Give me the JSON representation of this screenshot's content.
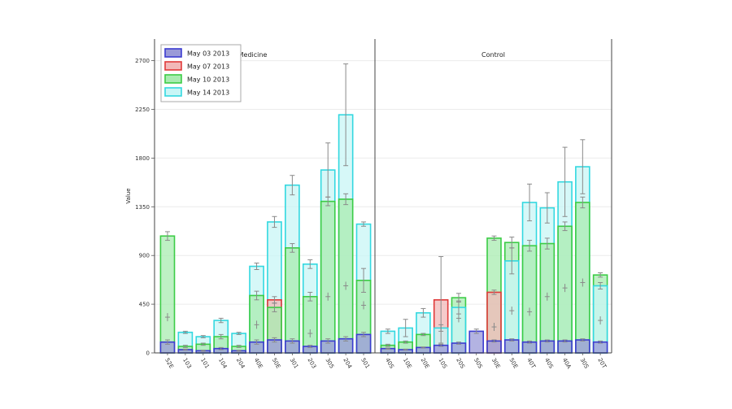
{
  "chart_data": {
    "type": "bar",
    "stacking": "overlay",
    "ylabel": "Value",
    "ylim": [
      0,
      2900
    ],
    "yticks": [
      0,
      450,
      900,
      1350,
      1800,
      2250,
      2700
    ],
    "grid": true,
    "legend_position": "top-left",
    "colors": {
      "May 03 2013": {
        "fill": "#9a9ad8",
        "stroke": "#3c3cd0"
      },
      "May 07 2013": {
        "fill": "#f2b8b8",
        "stroke": "#e03a3a"
      },
      "May 10 2013": {
        "fill": "#a8ecb0",
        "stroke": "#3ccc46"
      },
      "May 14 2013": {
        "fill": "#c8f6f6",
        "stroke": "#33d8e0"
      }
    },
    "legend": [
      "May 03 2013",
      "May 07 2013",
      "May 10 2013",
      "May 14 2013"
    ],
    "panels": [
      {
        "title": "Medicine",
        "categories": [
          "52E",
          "103",
          "101",
          "104",
          "204",
          "40E",
          "50E",
          "301",
          "203",
          "305",
          "204",
          "501"
        ],
        "series": [
          {
            "name": "May 03 2013",
            "values": [
              100,
              30,
              20,
              40,
              20,
              100,
              120,
              110,
              60,
              110,
              130,
              170
            ],
            "errors": [
              20,
              5,
              5,
              10,
              5,
              20,
              20,
              20,
              10,
              20,
              20,
              20
            ]
          },
          {
            "name": "May 07 2013",
            "values": [
              0,
              0,
              0,
              0,
              0,
              0,
              490,
              0,
              0,
              0,
              0,
              0
            ],
            "errors": [
              0,
              0,
              0,
              0,
              0,
              0,
              30,
              0,
              0,
              0,
              0,
              0
            ]
          },
          {
            "name": "May 10 2013",
            "values": [
              1080,
              60,
              80,
              150,
              60,
              530,
              420,
              970,
              520,
              1400,
              1420,
              670
            ],
            "errors": [
              40,
              10,
              10,
              20,
              10,
              40,
              40,
              40,
              40,
              40,
              50,
              110
            ]
          },
          {
            "name": "May 14 2013",
            "values": [
              0,
              190,
              150,
              300,
              180,
              800,
              1210,
              1550,
              820,
              1690,
              2200,
              1190
            ],
            "errors": [
              0,
              10,
              10,
              20,
              10,
              30,
              50,
              90,
              40,
              250,
              470,
              20
            ]
          }
        ],
        "inner_points": [
          {
            "values": [
              330,
              0,
              0,
              0,
              0,
              260,
              0,
              0,
              180,
              520,
              620,
              440
            ]
          }
        ]
      },
      {
        "title": "Control",
        "categories": [
          "40S",
          "10E",
          "20E",
          "10S",
          "20S",
          "50S",
          "30E",
          "50E",
          "40T",
          "40S",
          "40A",
          "30S",
          "20T"
        ],
        "series": [
          {
            "name": "May 03 2013",
            "values": [
              40,
              30,
              50,
              70,
              90,
              200,
              110,
              120,
              100,
              110,
              110,
              120,
              100
            ],
            "errors": [
              5,
              5,
              5,
              10,
              10,
              20,
              10,
              10,
              10,
              10,
              10,
              10,
              10
            ]
          },
          {
            "name": "May 07 2013",
            "values": [
              0,
              0,
              0,
              490,
              0,
              0,
              560,
              0,
              0,
              0,
              0,
              0,
              0
            ],
            "errors": [
              0,
              0,
              0,
              400,
              0,
              0,
              20,
              0,
              0,
              0,
              0,
              0,
              0
            ]
          },
          {
            "name": "May 10 2013",
            "values": [
              70,
              100,
              170,
              0,
              510,
              0,
              1060,
              1020,
              990,
              1010,
              1170,
              1390,
              720
            ],
            "errors": [
              10,
              10,
              10,
              0,
              40,
              0,
              20,
              50,
              50,
              50,
              40,
              50,
              20
            ]
          },
          {
            "name": "May 14 2013",
            "values": [
              200,
              230,
              370,
              230,
              420,
              0,
              0,
              850,
              1390,
              1340,
              1580,
              1720,
              620
            ],
            "errors": [
              20,
              80,
              40,
              30,
              60,
              0,
              0,
              120,
              170,
              140,
              320,
              250,
              30
            ]
          }
        ],
        "inner_points": [
          {
            "values": [
              0,
              0,
              0,
              0,
              320,
              0,
              240,
              390,
              380,
              520,
              600,
              650,
              300
            ]
          }
        ]
      }
    ]
  }
}
